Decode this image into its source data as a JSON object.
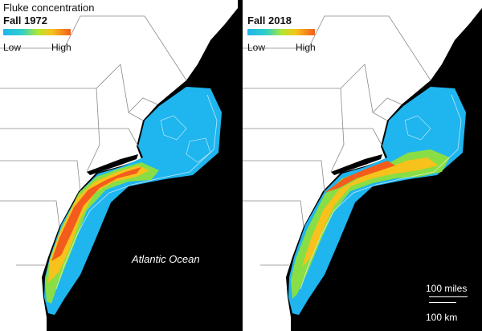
{
  "title": "Fluke concentration",
  "panels": [
    {
      "period": "Fall 1972"
    },
    {
      "period": "Fall 2018"
    }
  ],
  "legend": {
    "low": "Low",
    "high": "High"
  },
  "ocean_label": "Atlantic Ocean",
  "scale": {
    "miles": "100 miles",
    "km": "100 km"
  },
  "colors": {
    "ocean": "#000000",
    "land": "#ffffff",
    "low": "#1fb5ee",
    "mid": "#b6e62e",
    "high": "#f35c1c"
  }
}
